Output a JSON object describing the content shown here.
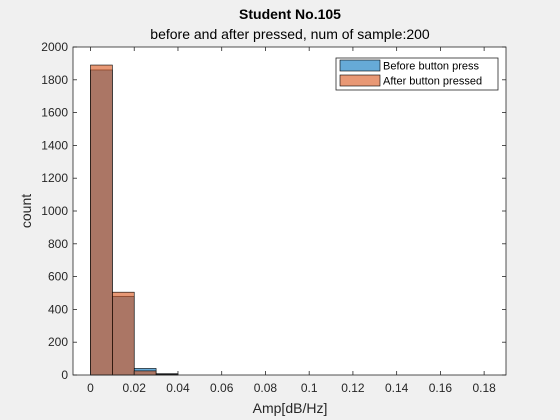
{
  "chart_data": {
    "type": "bar",
    "title": "Student No.105",
    "subtitle": "before and after pressed, num of sample:200",
    "xlabel": "Amp[dB/Hz]",
    "ylabel": "count",
    "xlim": [
      -0.008,
      0.19
    ],
    "ylim": [
      0,
      2000
    ],
    "xticks": [
      0,
      0.02,
      0.04,
      0.06,
      0.08,
      0.1,
      0.12,
      0.14,
      0.16,
      0.18
    ],
    "xtick_labels": [
      "0",
      "0.02",
      "0.04",
      "0.06",
      "0.08",
      "0.1",
      "0.12",
      "0.14",
      "0.16",
      "0.18"
    ],
    "yticks": [
      0,
      200,
      400,
      600,
      800,
      1000,
      1200,
      1400,
      1600,
      1800,
      2000
    ],
    "ytick_labels": [
      "0",
      "200",
      "400",
      "600",
      "800",
      "1000",
      "1200",
      "1400",
      "1600",
      "1800",
      "2000"
    ],
    "legend_position": "top-right",
    "grid": false,
    "bin_edges": [
      0,
      0.01,
      0.02,
      0.03,
      0.04
    ],
    "series": [
      {
        "name": "Before button press",
        "color": "#0072BD",
        "values": [
          1860,
          480,
          40,
          8
        ]
      },
      {
        "name": "After button pressed",
        "color": "#D95319",
        "values": [
          1890,
          505,
          25,
          4
        ]
      }
    ]
  }
}
